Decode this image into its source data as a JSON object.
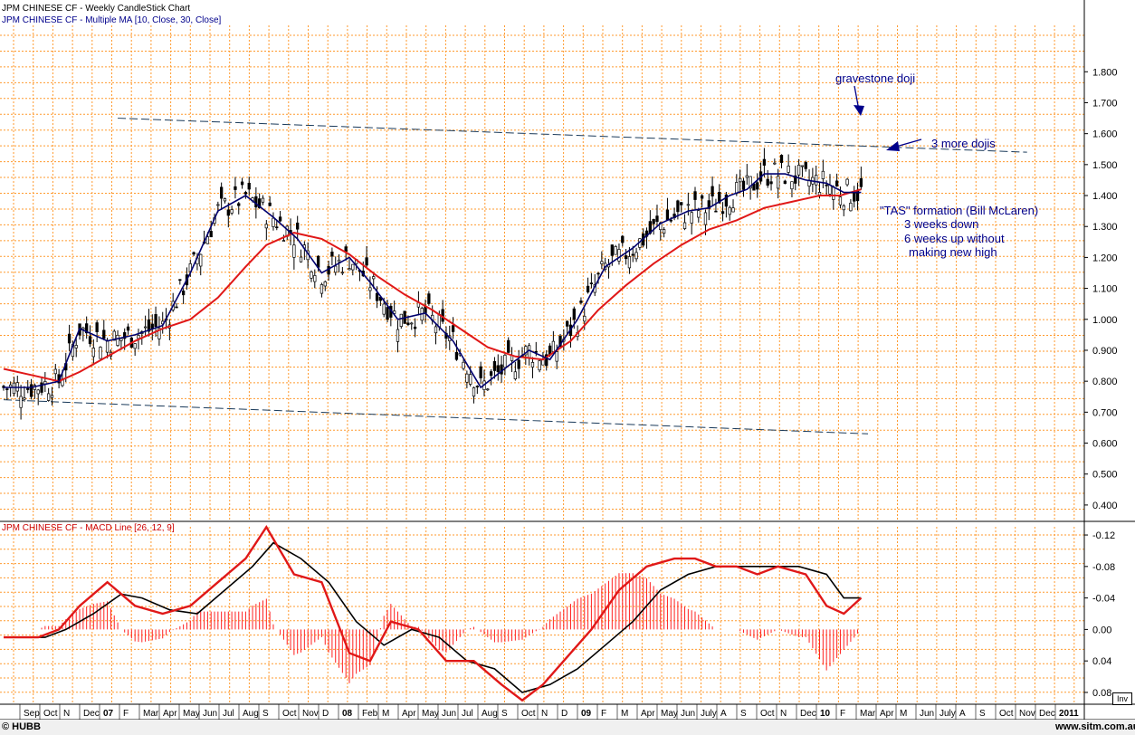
{
  "header": {
    "line1": "JPM CHINESE CF - Weekly CandleStick Chart",
    "line2": "JPM CHINESE CF - Multiple MA [10, Close, 30, Close]",
    "macd_title": "JPM CHINESE CF - MACD Line [26, 12, 9]"
  },
  "annotations": {
    "gravestone": "gravestone doji",
    "more_dojis": "3 more dojis",
    "tas_lines": [
      "\"TAS\" formation (Bill McLaren)",
      "3 weeks down",
      "6 weeks up without",
      "making new high"
    ]
  },
  "footer": {
    "copyright": "© HUBB",
    "site": "www.sitm.com.au",
    "inv_button": "Inv"
  },
  "colors": {
    "grid": "#ff9a2e",
    "candle": "#000000",
    "ma10": "#00006e",
    "ma30": "#e01818",
    "macd": "#e01818",
    "signal": "#000000",
    "histogram": "#ff2020",
    "trendline": "#1a3a5a"
  },
  "chart_data": {
    "type": "candlestick",
    "price_panel": {
      "y_ticks": [
        "1.800",
        "1.700",
        "1.600",
        "1.500",
        "1.400",
        "1.300",
        "1.200",
        "1.100",
        "1.000",
        "0.900",
        "0.800",
        "0.700",
        "0.600",
        "0.500",
        "0.400"
      ],
      "ylim": [
        0.35,
        1.95
      ],
      "series": [
        {
          "name": "MA 10 Close",
          "x": [
            0,
            8,
            12,
            16,
            22,
            30,
            38,
            46,
            54,
            62,
            70,
            78,
            85,
            92,
            100,
            106,
            114,
            122,
            130,
            138,
            146,
            152,
            158,
            166,
            174,
            182,
            190,
            198,
            204,
            210,
            215,
            220,
            226,
            232,
            238,
            243,
            248
          ],
          "values": [
            0.78,
            0.78,
            0.79,
            0.8,
            0.97,
            0.93,
            0.95,
            0.98,
            1.15,
            1.35,
            1.4,
            1.33,
            1.26,
            1.15,
            1.2,
            1.12,
            1.0,
            1.02,
            0.93,
            0.78,
            0.85,
            0.9,
            0.87,
            1.0,
            1.17,
            1.23,
            1.31,
            1.35,
            1.36,
            1.4,
            1.42,
            1.47,
            1.47,
            1.45,
            1.44,
            1.41,
            1.41
          ]
        },
        {
          "name": "MA 30 Close",
          "x": [
            0,
            8,
            16,
            22,
            30,
            38,
            46,
            54,
            62,
            70,
            76,
            84,
            92,
            100,
            108,
            116,
            124,
            132,
            140,
            148,
            156,
            164,
            172,
            180,
            188,
            196,
            204,
            212,
            220,
            228,
            236,
            242,
            248
          ],
          "values": [
            0.84,
            0.82,
            0.8,
            0.83,
            0.88,
            0.93,
            0.97,
            1.0,
            1.07,
            1.17,
            1.24,
            1.28,
            1.26,
            1.21,
            1.14,
            1.08,
            1.03,
            0.97,
            0.91,
            0.88,
            0.87,
            0.93,
            1.03,
            1.11,
            1.18,
            1.24,
            1.29,
            1.32,
            1.36,
            1.38,
            1.4,
            1.4,
            1.42
          ]
        }
      ],
      "trendlines": [
        {
          "from": [
            33,
            1.65
          ],
          "to": [
            296,
            1.54
          ]
        },
        {
          "from": [
            0,
            0.74
          ],
          "to": [
            250,
            0.63
          ]
        }
      ]
    },
    "macd_panel": {
      "y_ticks": [
        "-0.12",
        "-0.08",
        "-0.04",
        "0.00",
        "0.04",
        "0.08"
      ],
      "ylim": [
        -0.135,
        0.095
      ],
      "series": [
        {
          "name": "MACD Line",
          "x": [
            0,
            10,
            16,
            22,
            30,
            38,
            46,
            54,
            62,
            70,
            76,
            84,
            92,
            100,
            106,
            112,
            120,
            128,
            136,
            144,
            150,
            156,
            162,
            170,
            178,
            186,
            194,
            200,
            206,
            212,
            218,
            224,
            232,
            238,
            243,
            248
          ],
          "values": [
            0.01,
            0.01,
            0.0,
            -0.03,
            -0.06,
            -0.03,
            -0.02,
            -0.03,
            -0.06,
            -0.09,
            -0.13,
            -0.07,
            -0.06,
            0.03,
            0.04,
            -0.01,
            0.0,
            0.04,
            0.04,
            0.07,
            0.09,
            0.07,
            0.04,
            0.0,
            -0.05,
            -0.08,
            -0.09,
            -0.09,
            -0.08,
            -0.08,
            -0.07,
            -0.08,
            -0.07,
            -0.03,
            -0.02,
            -0.04
          ]
        },
        {
          "name": "Signal",
          "x": [
            0,
            12,
            18,
            26,
            34,
            40,
            48,
            56,
            64,
            72,
            78,
            86,
            94,
            102,
            110,
            118,
            126,
            134,
            142,
            150,
            158,
            166,
            174,
            182,
            190,
            198,
            206,
            214,
            222,
            230,
            238,
            243,
            248
          ],
          "values": [
            0.01,
            0.01,
            0.0,
            -0.02,
            -0.045,
            -0.04,
            -0.025,
            -0.02,
            -0.05,
            -0.08,
            -0.11,
            -0.09,
            -0.06,
            -0.01,
            0.02,
            0.0,
            0.01,
            0.04,
            0.05,
            0.08,
            0.07,
            0.05,
            0.02,
            -0.01,
            -0.05,
            -0.07,
            -0.08,
            -0.08,
            -0.08,
            -0.08,
            -0.07,
            -0.04,
            -0.04
          ]
        }
      ]
    },
    "x_labels": [
      "Sep",
      "Oct",
      "N",
      "Dec",
      "07",
      "F",
      "Mar",
      "Apr",
      "May",
      "Jun",
      "Jul",
      "Aug",
      "S",
      "Oct",
      "Nov",
      "D",
      "08",
      "Feb",
      "M",
      "Apr",
      "May",
      "Jun",
      "Jul",
      "Aug",
      "S",
      "Oct",
      "N",
      "D",
      "09",
      "F",
      "M",
      "Apr",
      "May",
      "Jun",
      "July",
      "A",
      "S",
      "Oct",
      "N",
      "Dec",
      "10",
      "F",
      "Mar",
      "Apr",
      "M",
      "Jun",
      "July",
      "A",
      "S",
      "Oct",
      "Nov",
      "Dec",
      "2011"
    ]
  }
}
